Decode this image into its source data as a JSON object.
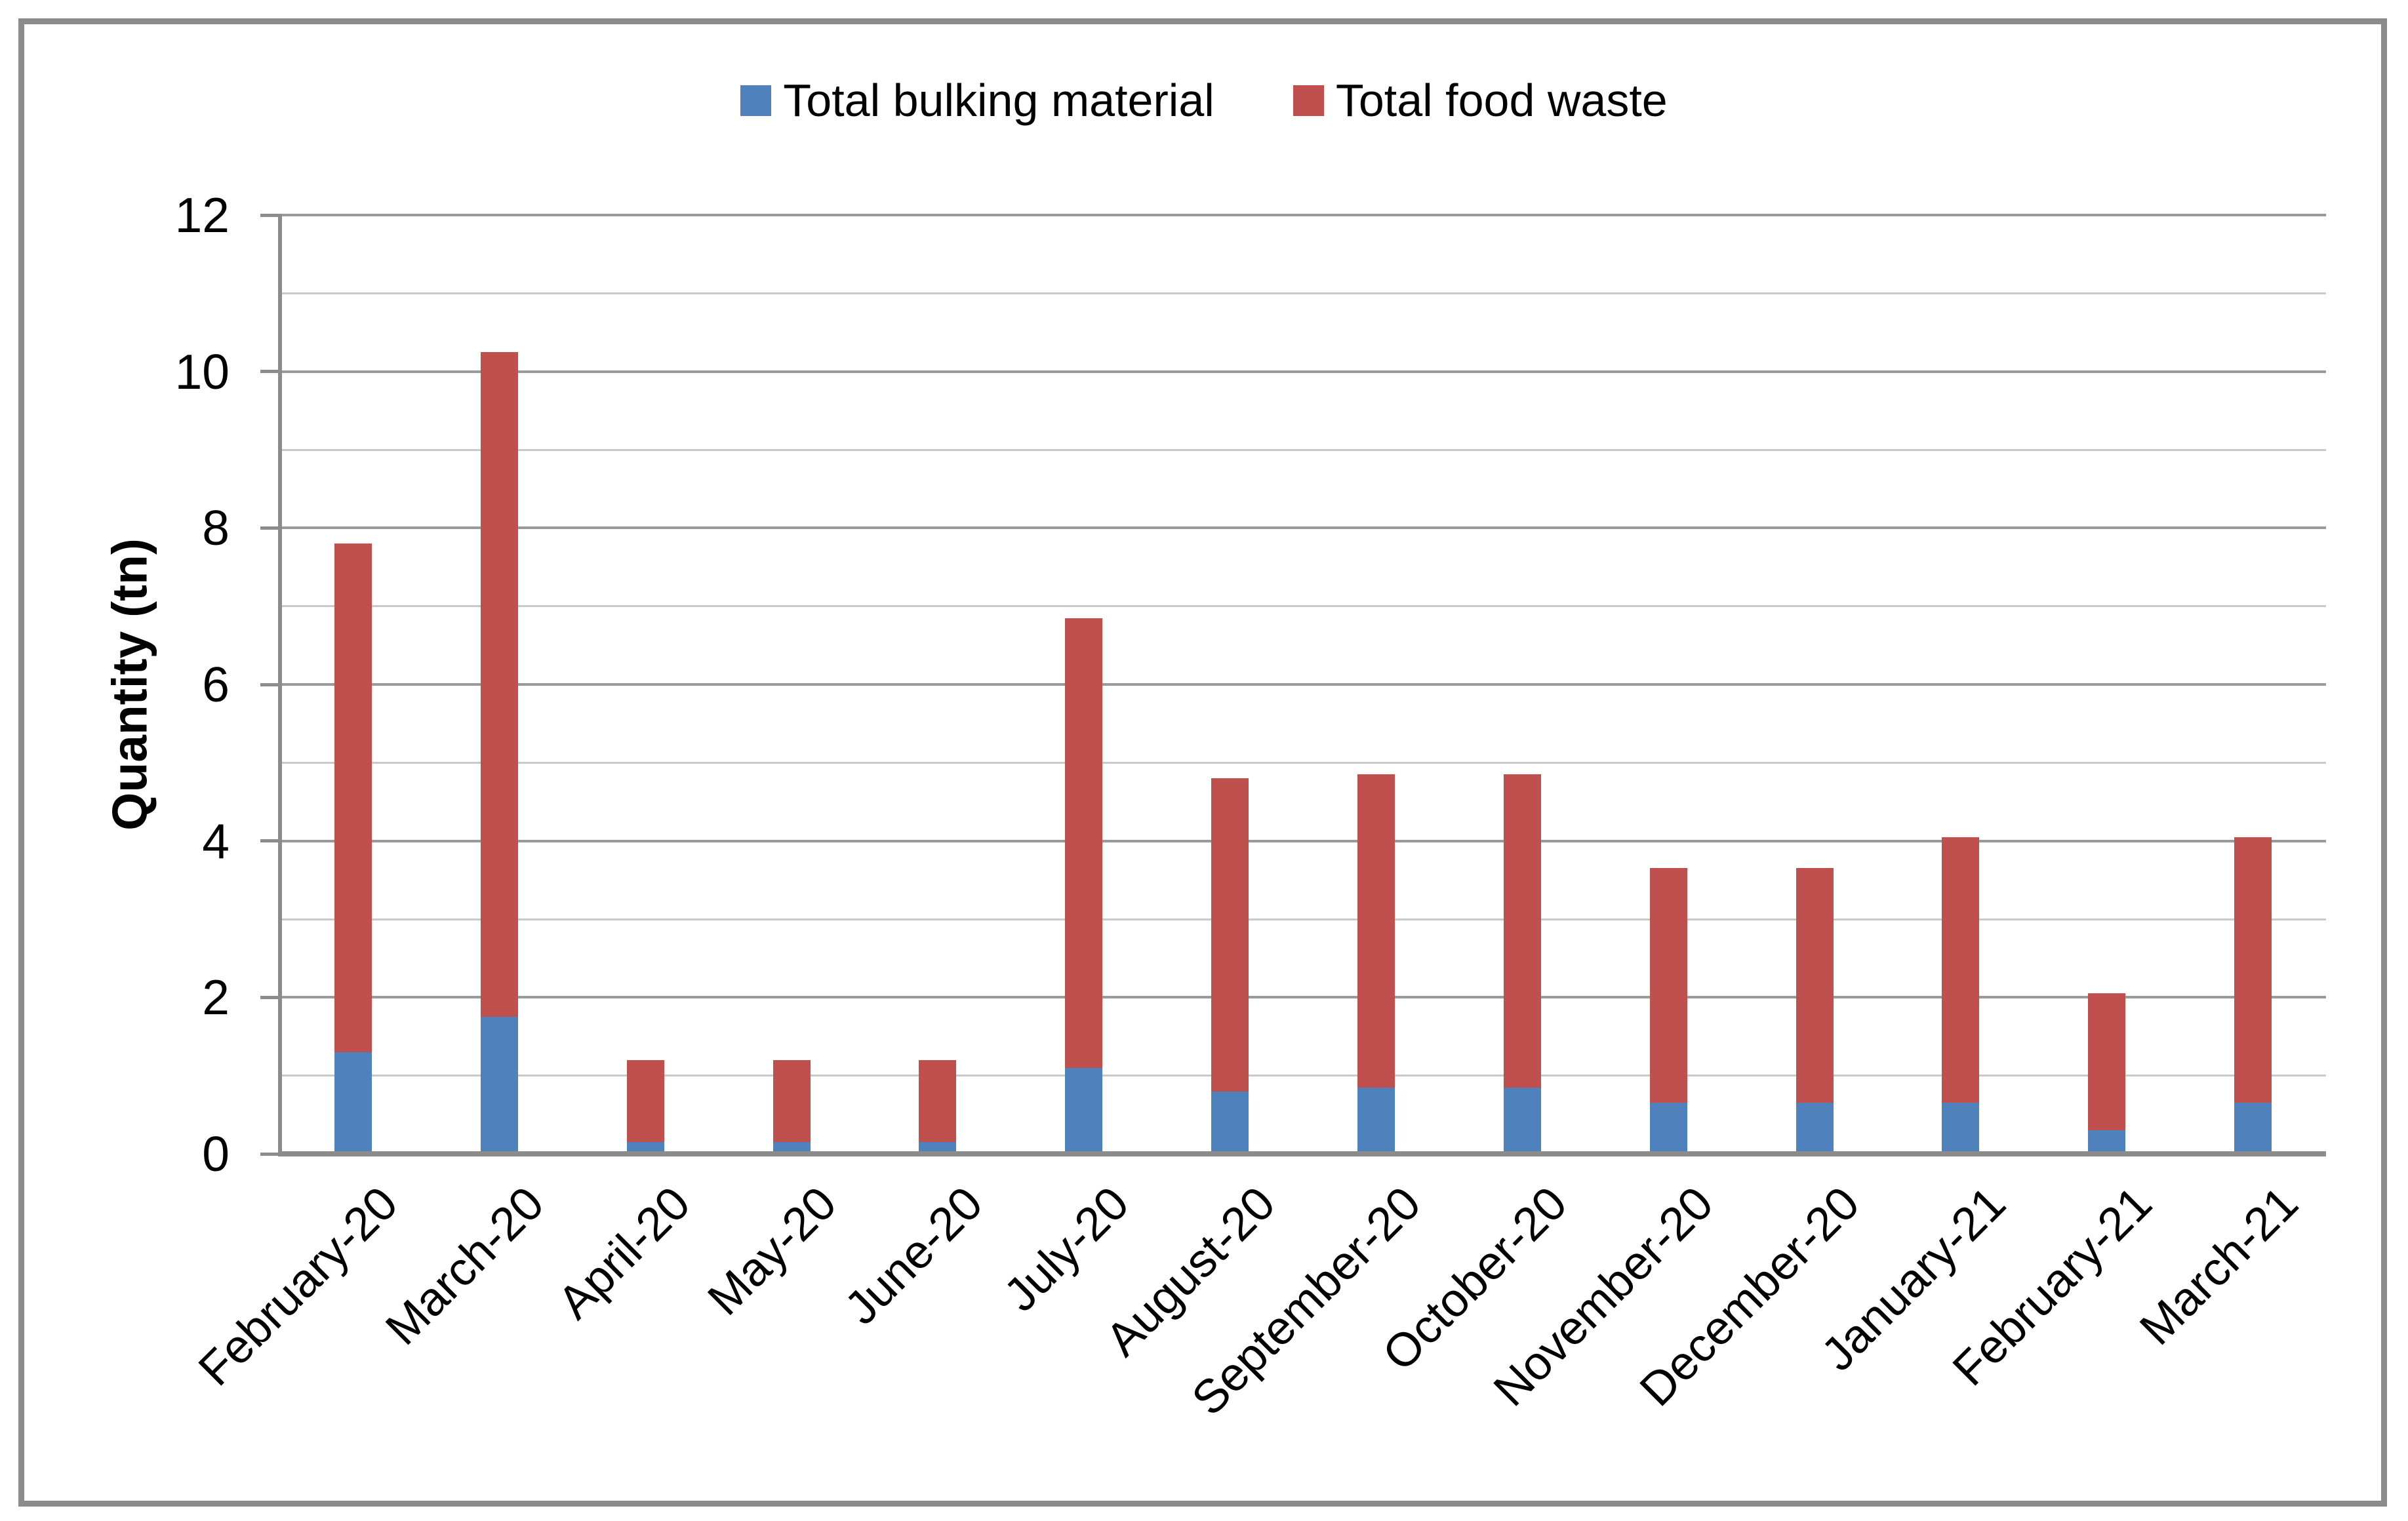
{
  "window": {
    "background": "#FFFFFF",
    "frame_color": "#8C8C8C"
  },
  "chart_data": {
    "type": "bar",
    "stacked": true,
    "title": "",
    "xlabel": "",
    "ylabel": "Quantity (tn)",
    "categories": [
      "February-20",
      "March-20",
      "April-20",
      "May-20",
      "June-20",
      "July-20",
      "August-20",
      "September-20",
      "October-20",
      "November-20",
      "December-20",
      "January-21",
      "February-21",
      "March-21"
    ],
    "series": [
      {
        "name": "Total bulking material",
        "color": "#4F81BD",
        "values": [
          1.3,
          1.75,
          0.15,
          0.15,
          0.15,
          1.1,
          0.8,
          0.85,
          0.85,
          0.65,
          0.65,
          0.65,
          0.3,
          0.65
        ]
      },
      {
        "name": "Total food waste",
        "color": "#C0504D",
        "values": [
          6.5,
          8.5,
          1.05,
          1.05,
          1.05,
          5.75,
          4.0,
          4.0,
          4.0,
          3.0,
          3.0,
          3.4,
          1.75,
          3.4
        ]
      }
    ],
    "ylim": [
      0,
      12
    ],
    "y_tick_labels": [
      "0",
      "2",
      "4",
      "6",
      "8",
      "10",
      "12"
    ],
    "y_major_tick_step": 2,
    "y_minor_tick_step": 1,
    "grid": "horizontal",
    "grid_major_color": "#9A9A9A",
    "grid_minor_color": "#C9C9C9",
    "axis_color": "#8C8C8C",
    "legend_position": "top-center",
    "x_tick_rotation_deg": -45
  }
}
